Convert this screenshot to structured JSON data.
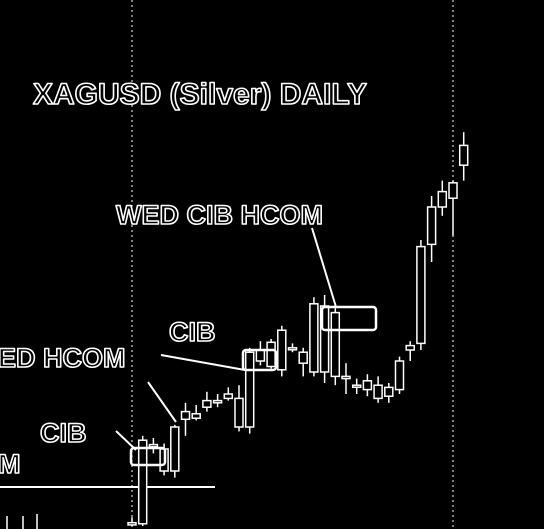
{
  "chart_data": {
    "type": "candlestick",
    "title": "XAGUSD (Silver) DAILY",
    "xlabel": "",
    "ylabel": "",
    "grid": false,
    "ohlc": [
      {
        "o": 3,
        "h": 8,
        "l": 0,
        "c": 1
      },
      {
        "o": 2,
        "h": 82,
        "l": 0,
        "c": 78
      },
      {
        "o": 72,
        "h": 80,
        "l": 66,
        "c": 74
      },
      {
        "o": 50,
        "h": 75,
        "l": 46,
        "c": 70
      },
      {
        "o": 50,
        "h": 92,
        "l": 44,
        "c": 90
      },
      {
        "o": 97,
        "h": 112,
        "l": 82,
        "c": 104
      },
      {
        "o": 98,
        "h": 110,
        "l": 96,
        "c": 102
      },
      {
        "o": 108,
        "h": 122,
        "l": 104,
        "c": 114
      },
      {
        "o": 112,
        "h": 120,
        "l": 108,
        "c": 114
      },
      {
        "o": 116,
        "h": 126,
        "l": 114,
        "c": 120
      },
      {
        "o": 90,
        "h": 128,
        "l": 86,
        "c": 116
      },
      {
        "o": 90,
        "h": 162,
        "l": 84,
        "c": 158
      },
      {
        "o": 150,
        "h": 168,
        "l": 146,
        "c": 160
      },
      {
        "o": 145,
        "h": 170,
        "l": 143,
        "c": 167
      },
      {
        "o": 142,
        "h": 182,
        "l": 136,
        "c": 178
      },
      {
        "o": 162,
        "h": 166,
        "l": 158,
        "c": 162
      },
      {
        "o": 148,
        "h": 162,
        "l": 136,
        "c": 158
      },
      {
        "o": 140,
        "h": 208,
        "l": 136,
        "c": 202
      },
      {
        "o": 140,
        "h": 210,
        "l": 130,
        "c": 200
      },
      {
        "o": 136,
        "h": 198,
        "l": 128,
        "c": 194
      },
      {
        "o": 134,
        "h": 148,
        "l": 120,
        "c": 136
      },
      {
        "o": 128,
        "h": 134,
        "l": 120,
        "c": 128
      },
      {
        "o": 124,
        "h": 138,
        "l": 118,
        "c": 132
      },
      {
        "o": 128,
        "h": 136,
        "l": 112,
        "c": 116
      },
      {
        "o": 118,
        "h": 130,
        "l": 112,
        "c": 126
      },
      {
        "o": 124,
        "h": 154,
        "l": 120,
        "c": 150
      },
      {
        "o": 160,
        "h": 168,
        "l": 150,
        "c": 164
      },
      {
        "o": 166,
        "h": 260,
        "l": 160,
        "c": 254
      },
      {
        "o": 290,
        "h": 300,
        "l": 240,
        "c": 256
      },
      {
        "o": 290,
        "h": 314,
        "l": 282,
        "c": 304
      },
      {
        "o": 298,
        "h": 314,
        "l": 264,
        "c": 312
      },
      {
        "o": 328,
        "h": 358,
        "l": 314,
        "c": 346
      }
    ]
  },
  "annotations": {
    "cib_1": "CIB",
    "wed_hcom_1": "ED HCOM",
    "cib_2": "CIB",
    "wed_cib_hcom": "WED CIB HCOM",
    "m_left": "M"
  }
}
